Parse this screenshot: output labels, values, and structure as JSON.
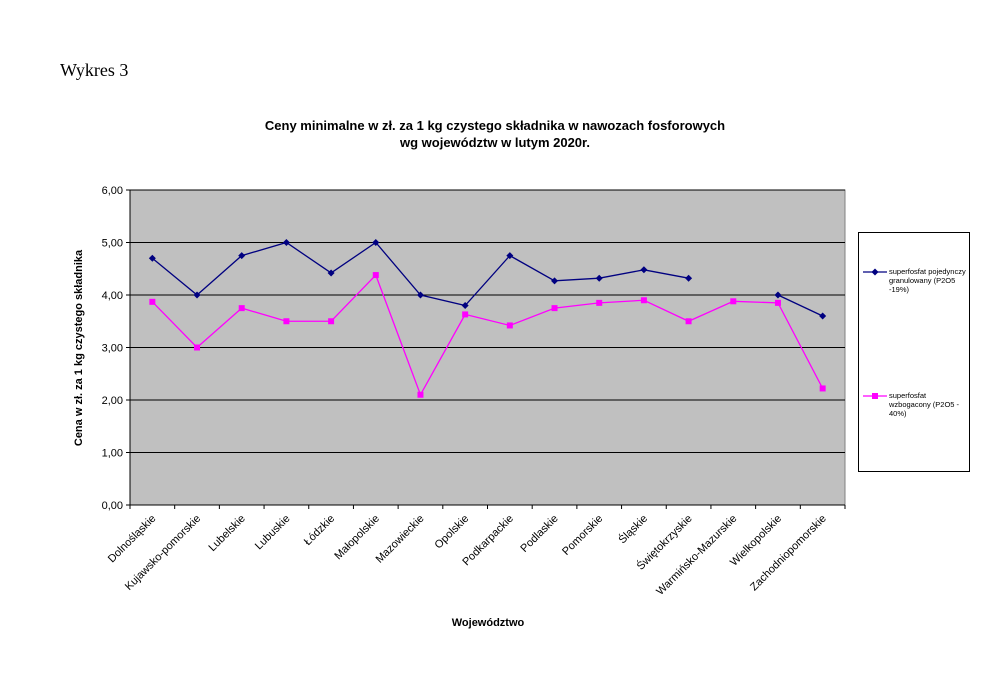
{
  "header": "Wykres 3",
  "chart_data": {
    "type": "line",
    "title": [
      "Ceny minimalne  w zł. za 1 kg czystego składnika w nawozach fosforowych",
      "wg województw w lutym 2020r."
    ],
    "x_label": "Województwo",
    "y_label": "Cena w zł. za 1 kg czystego składnika",
    "categories": [
      "Dolnośląskie",
      "Kujawsko-pomorskie",
      "Lubelskie",
      "Lubuskie",
      "Łódzkie",
      "Małopolskie",
      "Mazowieckie",
      "Opolskie",
      "Podkarpackie",
      "Podlaskie",
      "Pomorskie",
      "Śląskie",
      "Świętokrzyskie",
      "Warmińsko-Mazurskie",
      "Wielkopolskie",
      "Zachodniopomorskie"
    ],
    "series": [
      {
        "name": "superfosfat pojedynczy granulowany (P2O5 -19%)",
        "color": "#000080",
        "marker": "diamond",
        "values": [
          4.7,
          4.0,
          4.75,
          5.0,
          4.42,
          5.0,
          4.0,
          3.8,
          4.75,
          4.27,
          4.32,
          4.48,
          4.32,
          null,
          4.0,
          3.6
        ]
      },
      {
        "name": "superfosfat wzbogacony (P2O5 - 40%)",
        "color": "#ff00ff",
        "marker": "square",
        "values": [
          3.87,
          3.0,
          3.75,
          3.5,
          3.5,
          4.38,
          2.1,
          3.63,
          3.42,
          3.75,
          3.85,
          3.9,
          3.5,
          3.88,
          3.85,
          2.22
        ]
      }
    ],
    "ylim": [
      0,
      6
    ],
    "yticks": [
      {
        "value": 0,
        "label": "0,00"
      },
      {
        "value": 1,
        "label": "1,00"
      },
      {
        "value": 2,
        "label": "2,00"
      },
      {
        "value": 3,
        "label": "3,00"
      },
      {
        "value": 4,
        "label": "4,00"
      },
      {
        "value": 5,
        "label": "5,00"
      },
      {
        "value": 6,
        "label": "6,00"
      }
    ],
    "grid": true,
    "legend": "right",
    "plot_background": "#c0c0c0"
  }
}
